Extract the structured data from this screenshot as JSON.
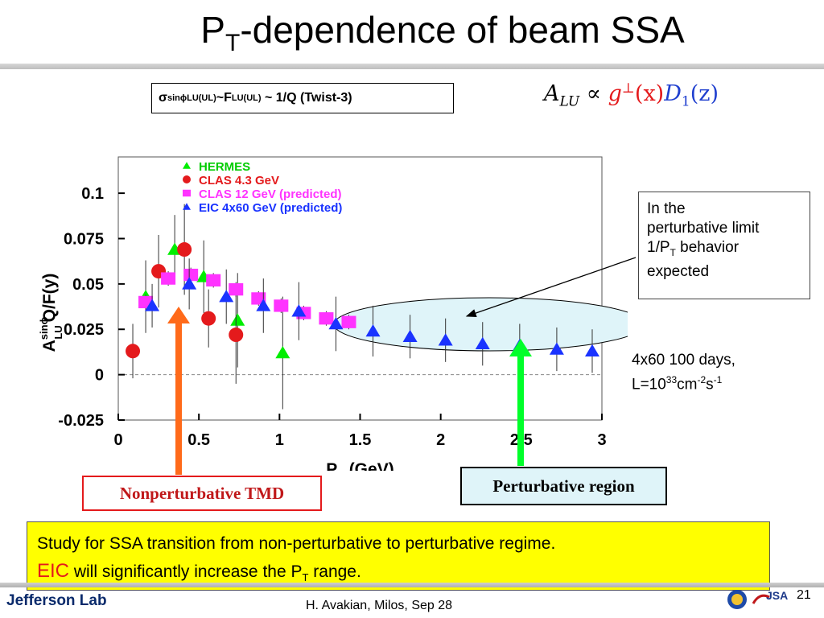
{
  "slide": {
    "title_main": "P",
    "title_sub": "T",
    "title_rest": "-dependence of beam SSA"
  },
  "formula_box": {
    "sigma": "σ",
    "sup": "sinϕ",
    "sub": "LU(UL)",
    "mid": " ~F",
    "sub2": "LU(UL)",
    "rest": "~ 1/Q (Twist-3)"
  },
  "alu_formula": {
    "a": "A",
    "a_sub": "LU",
    "prop": " ∝ ",
    "g": "g",
    "g_sup": "⊥",
    "gx": "(x)",
    "d": "D",
    "d_sub": "1",
    "dz": "(z)"
  },
  "chart_data": {
    "type": "scatter",
    "xlabel_main": "P",
    "xlabel_sub": "T",
    "xlabel_rest": " (GeV)",
    "ylabel_a": "A",
    "ylabel_sup": "sinϕ",
    "ylabel_sub": "LU",
    "ylabel_rest": "Q/F(y)",
    "xlim": [
      0,
      3
    ],
    "ylim": [
      -0.025,
      0.12
    ],
    "xticks": [
      0,
      0.5,
      1,
      1.5,
      2,
      2.5,
      3
    ],
    "xtick_labels": [
      "0",
      "0.5",
      "1",
      "1.5",
      "2",
      "2.5",
      "3"
    ],
    "yticks": [
      -0.025,
      0,
      0.025,
      0.05,
      0.075,
      0.1
    ],
    "ytick_labels": [
      "-0.025",
      "0",
      "0.025",
      "0.05",
      "0.075",
      "0.1"
    ],
    "zero_line": true,
    "legend_position": "top-left",
    "series": [
      {
        "name": "HERMES",
        "color": "#00ee00",
        "marker": "triangle",
        "points": [
          {
            "x": 0.17,
            "y": 0.043,
            "err": 0.02
          },
          {
            "x": 0.35,
            "y": 0.069,
            "err": 0.019
          },
          {
            "x": 0.53,
            "y": 0.054,
            "err": 0.02
          },
          {
            "x": 0.74,
            "y": 0.03,
            "err": 0.026
          },
          {
            "x": 1.02,
            "y": 0.012,
            "err": 0.031
          }
        ]
      },
      {
        "name": "CLAS 4.3 GeV",
        "color": "#e41a1c",
        "marker": "circle",
        "points": [
          {
            "x": 0.09,
            "y": 0.013,
            "err": 0.015
          },
          {
            "x": 0.25,
            "y": 0.057,
            "err": 0.02
          },
          {
            "x": 0.41,
            "y": 0.069,
            "err": 0.025
          },
          {
            "x": 0.56,
            "y": 0.031,
            "err": 0.016
          },
          {
            "x": 0.73,
            "y": 0.022,
            "err": 0.027
          }
        ]
      },
      {
        "name": "CLAS 12 GeV (predicted)",
        "color": "#ff33ff",
        "marker": "square",
        "points": [
          {
            "x": 0.17,
            "y": 0.04,
            "err": 0.004
          },
          {
            "x": 0.31,
            "y": 0.053,
            "err": 0.004
          },
          {
            "x": 0.45,
            "y": 0.055,
            "err": 0.004
          },
          {
            "x": 0.59,
            "y": 0.052,
            "err": 0.004
          },
          {
            "x": 0.73,
            "y": 0.047,
            "err": 0.004
          },
          {
            "x": 0.87,
            "y": 0.042,
            "err": 0.004
          },
          {
            "x": 1.01,
            "y": 0.038,
            "err": 0.004
          },
          {
            "x": 1.15,
            "y": 0.034,
            "err": 0.004
          },
          {
            "x": 1.29,
            "y": 0.031,
            "err": 0.004
          },
          {
            "x": 1.43,
            "y": 0.029,
            "err": 0.004
          }
        ]
      },
      {
        "name": "EIC 4x60 GeV (predicted)",
        "color": "#1a33ff",
        "marker": "triangle",
        "points": [
          {
            "x": 0.21,
            "y": 0.038,
            "err": 0.012
          },
          {
            "x": 0.44,
            "y": 0.05,
            "err": 0.014
          },
          {
            "x": 0.67,
            "y": 0.043,
            "err": 0.015
          },
          {
            "x": 0.9,
            "y": 0.038,
            "err": 0.015
          },
          {
            "x": 1.12,
            "y": 0.035,
            "err": 0.016
          },
          {
            "x": 1.35,
            "y": 0.028,
            "err": 0.015
          },
          {
            "x": 1.58,
            "y": 0.024,
            "err": 0.014
          },
          {
            "x": 1.81,
            "y": 0.021,
            "err": 0.012
          },
          {
            "x": 2.03,
            "y": 0.019,
            "err": 0.012
          },
          {
            "x": 2.26,
            "y": 0.017,
            "err": 0.012
          },
          {
            "x": 2.49,
            "y": 0.016,
            "err": 0.012
          },
          {
            "x": 2.72,
            "y": 0.014,
            "err": 0.012
          },
          {
            "x": 2.94,
            "y": 0.013,
            "err": 0.012
          }
        ]
      }
    ],
    "region_label_color": "#dff4f9"
  },
  "notes": {
    "perturb_line1": "In the",
    "perturb_line2": "perturbative limit",
    "perturb_line3a": "1/P",
    "perturb_line3sub": "T",
    "perturb_line3b": " behavior",
    "perturb_line4": "expected",
    "eic_line1": "4x60 100 days,",
    "eic_line2a": "L=10",
    "eic_line2sup": "33",
    "eic_line2b": "cm",
    "eic_line2sup2": "-2",
    "eic_line2c": "s",
    "eic_line2sup3": "-1"
  },
  "labels": {
    "nonperturbative": "Nonperturbative TMD",
    "perturbative": "Perturbative region"
  },
  "summary": {
    "line1": "Study for SSA transition from non-perturbative to perturbative regime.",
    "eic": "EIC",
    "line2a": " will significantly increase the P",
    "line2sub": "T",
    "line2b": " range."
  },
  "footer": {
    "logo": "Jefferson Lab",
    "text": "H. Avakian, Milos,  Sep 28",
    "page": "21",
    "jsa": "JSA"
  },
  "colors": {
    "arrow_orange": "#ff6a1a",
    "arrow_green": "#00ff2a",
    "ellipse_fill": "#dff4f9"
  }
}
